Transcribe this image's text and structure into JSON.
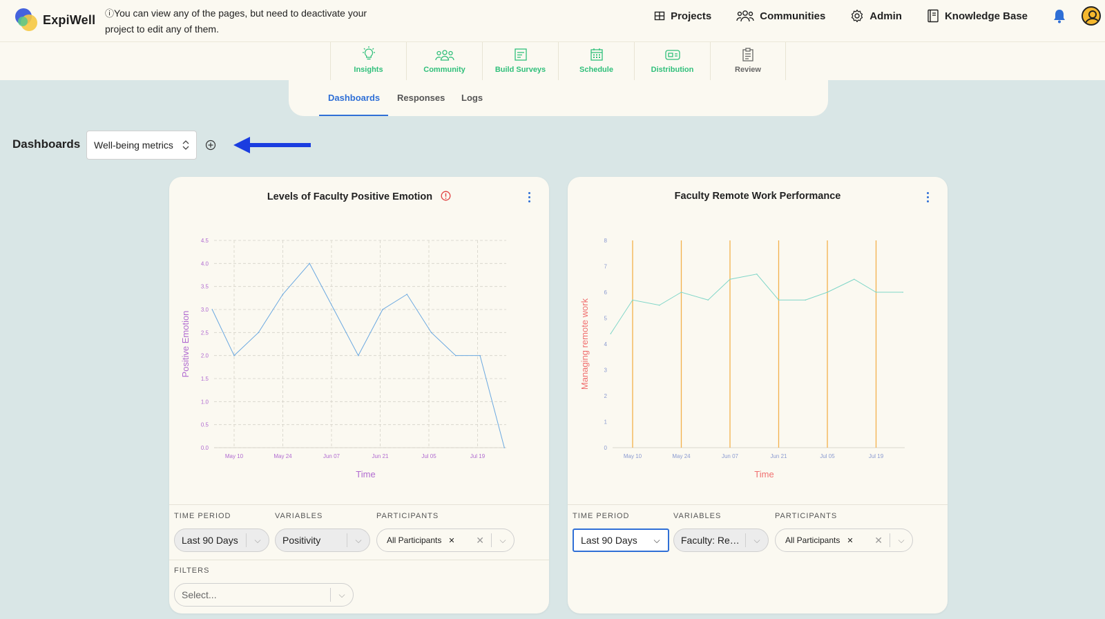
{
  "app": {
    "name": "ExpiWell",
    "notice": "You can view any of the pages, but need to deactivate your project to edit any of them."
  },
  "topnav": [
    {
      "label": "Projects",
      "icon": "grid-icon"
    },
    {
      "label": "Communities",
      "icon": "people-icon"
    },
    {
      "label": "Admin",
      "icon": "gear-icon"
    },
    {
      "label": "Knowledge Base",
      "icon": "book-icon"
    }
  ],
  "subnav": [
    {
      "label": "Insights",
      "icon": "lightbulb-icon"
    },
    {
      "label": "Community",
      "icon": "community-icon"
    },
    {
      "label": "Build Surveys",
      "icon": "survey-icon"
    },
    {
      "label": "Schedule",
      "icon": "calendar-icon"
    },
    {
      "label": "Distribution",
      "icon": "distribution-icon"
    },
    {
      "label": "Review",
      "icon": "clipboard-icon"
    }
  ],
  "tabs": {
    "dashboards": "Dashboards",
    "responses": "Responses",
    "logs": "Logs",
    "active": "Dashboards"
  },
  "dashboard": {
    "label": "Dashboards",
    "selected": "Well-being metrics"
  },
  "colors": {
    "accent": "#2f6fd6",
    "green": "#2fbf7a",
    "chart1_line": "#6aa8e0",
    "chart1_axis_text": "#b06ad0",
    "chart2_line": "#7fd6c8",
    "chart2_bars": "#f3b04a",
    "chart2_axis_label": "#f07070",
    "arrow": "#1a3de0"
  },
  "cards": [
    {
      "title": "Levels of Faculty Positive Emotion",
      "controls": {
        "time_period_label": "TIME PERIOD",
        "time_period_value": "Last 90 Days",
        "variables_label": "VARIABLES",
        "variables_value": "Positivity",
        "participants_label": "PARTICIPANTS",
        "participants_value": "All Participants",
        "filters_label": "FILTERS",
        "filters_placeholder": "Select..."
      }
    },
    {
      "title": "Faculty Remote Work Performance",
      "controls": {
        "time_period_label": "TIME PERIOD",
        "time_period_value": "Last 90 Days",
        "variables_label": "VARIABLES",
        "variables_value": "Faculty: Re…",
        "participants_label": "PARTICIPANTS",
        "participants_value": "All Participants"
      }
    }
  ],
  "chart_data": [
    {
      "type": "line",
      "title": "Levels of Faculty Positive Emotion",
      "xlabel": "Time",
      "ylabel": "Positive Emotion",
      "x_ticks": [
        "May 10",
        "May 24",
        "Jun 07",
        "Jun 21",
        "Jul 05",
        "Jul 19"
      ],
      "y_ticks": [
        "0.0",
        "0.5",
        "1.0",
        "1.5",
        "2.0",
        "2.5",
        "3.0",
        "3.5",
        "4.0",
        "4.5"
      ],
      "ylim": [
        0,
        4.5
      ],
      "grid": true,
      "series": [
        {
          "x": [
            -0.45,
            0,
            0.5,
            1,
            1.55,
            2.05,
            2.55,
            3.05,
            3.55,
            4.05,
            4.55,
            5.05,
            5.55
          ],
          "values": [
            3.0,
            2.0,
            2.5,
            3.33,
            4.0,
            3.0,
            2.0,
            3.0,
            3.33,
            2.5,
            2.0,
            2.0,
            0.0
          ]
        }
      ]
    },
    {
      "type": "line",
      "title": "Faculty Remote Work Performance",
      "xlabel": "Time",
      "ylabel": "Managing remote work",
      "x_ticks": [
        "May 10",
        "May 24",
        "Jun 07",
        "Jun 21",
        "Jul 05",
        "Jul 19"
      ],
      "y_ticks": [
        "0",
        "1",
        "2",
        "3",
        "4",
        "5",
        "6",
        "7",
        "8"
      ],
      "ylim": [
        0,
        8
      ],
      "grid": false,
      "vertical_markers": [
        "May 10",
        "May 24",
        "Jun 07",
        "Jun 21",
        "Jul 05",
        "Jul 19"
      ],
      "series": [
        {
          "x": [
            -0.45,
            0,
            0.55,
            1,
            1.55,
            2,
            2.55,
            3,
            3.55,
            4,
            4.55,
            5,
            5.55
          ],
          "values": [
            4.4,
            5.7,
            5.5,
            6.0,
            5.7,
            6.5,
            6.7,
            5.7,
            5.7,
            6.0,
            6.5,
            6.0,
            6.0
          ]
        }
      ]
    }
  ]
}
